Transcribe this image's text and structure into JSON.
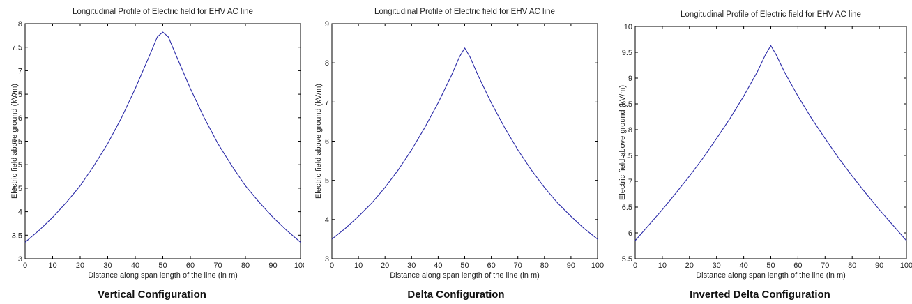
{
  "colors": {
    "line": "#2a2aa8",
    "axes": "#000000",
    "background": "#ffffff"
  },
  "chart_data": [
    {
      "type": "line",
      "title": "Longitudinal Profile of Electric field for EHV AC line",
      "xlabel": "Distance along span length of the line (in m)",
      "ylabel": "Electric field above ground (kV/m)",
      "caption": "Vertical Configuration",
      "xlim": [
        0,
        100
      ],
      "ylim": [
        3,
        8
      ],
      "xticks": [
        0,
        10,
        20,
        30,
        40,
        50,
        60,
        70,
        80,
        90,
        100
      ],
      "xtick_labels": [
        "0",
        "10",
        "20",
        "30",
        "40",
        "50",
        "60",
        "70",
        "80",
        "90",
        "100"
      ],
      "yticks": [
        3,
        3.5,
        4,
        4.5,
        5,
        5.5,
        6,
        6.5,
        7,
        7.5,
        8
      ],
      "ytick_labels": [
        "3",
        "3.5",
        "4",
        "4.5",
        "5",
        "5.5",
        "6",
        "6.5",
        "7",
        "7.5",
        "8"
      ],
      "grid": false,
      "x": [
        0,
        5,
        10,
        15,
        20,
        25,
        30,
        35,
        40,
        45,
        48,
        50,
        52,
        55,
        60,
        65,
        70,
        75,
        80,
        85,
        90,
        95,
        100
      ],
      "values": [
        3.35,
        3.6,
        3.88,
        4.2,
        4.55,
        4.98,
        5.45,
        6.0,
        6.62,
        7.3,
        7.72,
        7.82,
        7.72,
        7.3,
        6.62,
        6.0,
        5.45,
        4.98,
        4.55,
        4.2,
        3.88,
        3.6,
        3.35
      ]
    },
    {
      "type": "line",
      "title": "Longitudinal Profile of Electric field for EHV AC line",
      "xlabel": "Distance along span length of the line (in m)",
      "ylabel": "Electric field above ground (kV/m)",
      "caption": "Delta Configuration",
      "xlim": [
        0,
        100
      ],
      "ylim": [
        3,
        9
      ],
      "xticks": [
        0,
        10,
        20,
        30,
        40,
        50,
        60,
        70,
        80,
        90,
        100
      ],
      "xtick_labels": [
        "0",
        "10",
        "20",
        "30",
        "40",
        "50",
        "60",
        "70",
        "80",
        "90",
        "100"
      ],
      "yticks": [
        3,
        4,
        5,
        6,
        7,
        8,
        9
      ],
      "ytick_labels": [
        "3",
        "4",
        "5",
        "6",
        "7",
        "8",
        "9"
      ],
      "grid": false,
      "x": [
        0,
        5,
        10,
        15,
        20,
        25,
        30,
        35,
        40,
        45,
        48,
        50,
        52,
        55,
        60,
        65,
        70,
        75,
        80,
        85,
        90,
        95,
        100
      ],
      "values": [
        3.5,
        3.77,
        4.08,
        4.42,
        4.82,
        5.27,
        5.78,
        6.35,
        6.98,
        7.68,
        8.15,
        8.38,
        8.15,
        7.68,
        6.98,
        6.35,
        5.78,
        5.27,
        4.82,
        4.42,
        4.08,
        3.77,
        3.5
      ]
    },
    {
      "type": "line",
      "title": "Longitudinal Profile of Electric field for EHV AC line",
      "xlabel": "Distance along span length of the line (in m)",
      "ylabel": "Electric field above ground (kV/m)",
      "caption": "Inverted Delta Configuration",
      "xlim": [
        0,
        100
      ],
      "ylim": [
        5.5,
        10
      ],
      "xticks": [
        0,
        10,
        20,
        30,
        40,
        50,
        60,
        70,
        80,
        90,
        100
      ],
      "xtick_labels": [
        "0",
        "10",
        "20",
        "30",
        "40",
        "50",
        "60",
        "70",
        "80",
        "90",
        "100"
      ],
      "yticks": [
        5.5,
        6,
        6.5,
        7,
        7.5,
        8,
        8.5,
        9,
        9.5,
        10
      ],
      "ytick_labels": [
        "5.5",
        "6",
        "6.5",
        "7",
        "7.5",
        "8",
        "8.5",
        "9",
        "9.5",
        "10"
      ],
      "grid": false,
      "x": [
        0,
        5,
        10,
        15,
        20,
        25,
        30,
        35,
        40,
        45,
        48,
        50,
        52,
        55,
        60,
        65,
        70,
        75,
        80,
        85,
        90,
        95,
        100
      ],
      "values": [
        5.85,
        6.15,
        6.45,
        6.77,
        7.1,
        7.45,
        7.83,
        8.22,
        8.65,
        9.12,
        9.45,
        9.63,
        9.45,
        9.12,
        8.65,
        8.22,
        7.83,
        7.45,
        7.1,
        6.77,
        6.45,
        6.15,
        5.85
      ]
    }
  ]
}
